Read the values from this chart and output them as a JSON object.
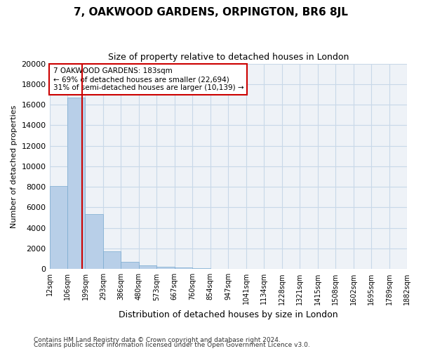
{
  "title": "7, OAKWOOD GARDENS, ORPINGTON, BR6 8JL",
  "subtitle": "Size of property relative to detached houses in London",
  "xlabel": "Distribution of detached houses by size in London",
  "ylabel": "Number of detached properties",
  "footnote1": "Contains HM Land Registry data © Crown copyright and database right 2024.",
  "footnote2": "Contains public sector information licensed under the Open Government Licence v3.0.",
  "property_bin": 1,
  "annotation_line1": "7 OAKWOOD GARDENS: 183sqm",
  "annotation_line2": "← 69% of detached houses are smaller (22,694)",
  "annotation_line3": "31% of semi-detached houses are larger (10,139) →",
  "bar_color": "#b8cfe8",
  "bar_edge_color": "#7aaad0",
  "vline_color": "#cc0000",
  "annotation_box_edge": "#cc0000",
  "grid_color": "#c8d8e8",
  "background_color": "#eef2f7",
  "bin_labels": [
    "12sqm",
    "106sqm",
    "199sqm",
    "293sqm",
    "386sqm",
    "480sqm",
    "573sqm",
    "667sqm",
    "760sqm",
    "854sqm",
    "947sqm",
    "1041sqm",
    "1134sqm",
    "1228sqm",
    "1321sqm",
    "1415sqm",
    "1508sqm",
    "1602sqm",
    "1695sqm",
    "1789sqm",
    "1882sqm"
  ],
  "counts": [
    8050,
    16700,
    5350,
    1750,
    700,
    330,
    200,
    160,
    120,
    0,
    0,
    0,
    0,
    0,
    0,
    0,
    0,
    0,
    0,
    0
  ],
  "ylim": [
    0,
    20000
  ],
  "yticks": [
    0,
    2000,
    4000,
    6000,
    8000,
    10000,
    12000,
    14000,
    16000,
    18000,
    20000
  ]
}
